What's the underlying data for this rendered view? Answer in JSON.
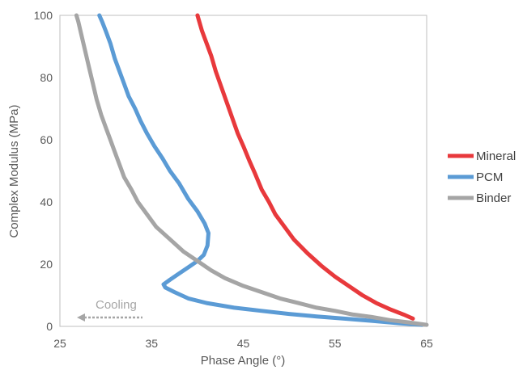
{
  "chart_data": {
    "type": "line",
    "title": "",
    "xlabel": "Phase Angle (°)",
    "ylabel": "Complex Modulus (MPa)",
    "xlim": [
      25,
      65
    ],
    "ylim": [
      0,
      100
    ],
    "xticks": [
      25,
      35,
      45,
      55,
      65
    ],
    "yticks": [
      0,
      20,
      40,
      60,
      80,
      100
    ],
    "grid": false,
    "legend_position": "right",
    "series": [
      {
        "name": "Mineral",
        "color": "#e8393c",
        "points": [
          [
            63.5,
            2.5
          ],
          [
            62.5,
            3.8
          ],
          [
            61,
            5.5
          ],
          [
            59.5,
            7.5
          ],
          [
            58,
            10
          ],
          [
            56.5,
            13
          ],
          [
            55,
            16
          ],
          [
            53.5,
            19.5
          ],
          [
            52,
            23.5
          ],
          [
            50.5,
            28
          ],
          [
            49.5,
            32
          ],
          [
            48.5,
            36
          ],
          [
            47.8,
            40
          ],
          [
            47,
            44
          ],
          [
            46.3,
            49
          ],
          [
            45.7,
            53
          ],
          [
            45,
            58
          ],
          [
            44.4,
            62
          ],
          [
            43.8,
            67
          ],
          [
            43.2,
            72
          ],
          [
            42.6,
            77
          ],
          [
            42,
            82
          ],
          [
            41.5,
            87
          ],
          [
            41,
            91
          ],
          [
            40.5,
            95
          ],
          [
            40,
            100
          ]
        ]
      },
      {
        "name": "PCM",
        "color": "#5b9bd5",
        "points": [
          [
            64.5,
            0.5
          ],
          [
            62,
            1
          ],
          [
            59,
            1.8
          ],
          [
            56,
            2.5
          ],
          [
            53,
            3.2
          ],
          [
            50,
            4
          ],
          [
            47,
            5
          ],
          [
            44,
            6
          ],
          [
            41,
            7.5
          ],
          [
            39,
            9
          ],
          [
            37.5,
            11
          ],
          [
            36.5,
            12.5
          ],
          [
            36.3,
            13.5
          ],
          [
            37,
            15
          ],
          [
            38,
            17
          ],
          [
            39,
            19
          ],
          [
            40,
            21
          ],
          [
            40.7,
            23
          ],
          [
            41.1,
            26
          ],
          [
            41.2,
            30
          ],
          [
            40.8,
            33
          ],
          [
            40,
            37
          ],
          [
            39,
            41
          ],
          [
            38,
            46
          ],
          [
            37,
            50
          ],
          [
            36.2,
            54
          ],
          [
            35.3,
            58
          ],
          [
            34.5,
            62
          ],
          [
            33.8,
            66
          ],
          [
            33.2,
            70
          ],
          [
            32.5,
            74
          ],
          [
            32,
            78
          ],
          [
            31.5,
            82
          ],
          [
            31,
            86
          ],
          [
            30.5,
            91
          ],
          [
            30,
            95
          ],
          [
            29.6,
            98
          ],
          [
            29.3,
            100
          ]
        ]
      },
      {
        "name": "Binder",
        "color": "#a5a5a5",
        "points": [
          [
            65,
            0.5
          ],
          [
            63,
            1.3
          ],
          [
            61,
            2
          ],
          [
            59,
            3
          ],
          [
            57,
            3.8
          ],
          [
            55,
            5
          ],
          [
            53,
            6
          ],
          [
            51,
            7.5
          ],
          [
            49,
            9
          ],
          [
            47,
            11
          ],
          [
            45,
            13
          ],
          [
            43,
            15.5
          ],
          [
            41.5,
            18
          ],
          [
            40,
            21
          ],
          [
            38.5,
            24
          ],
          [
            37,
            28
          ],
          [
            35.5,
            32
          ],
          [
            34.5,
            36
          ],
          [
            33.5,
            40
          ],
          [
            32.8,
            44
          ],
          [
            32,
            48
          ],
          [
            31.5,
            52
          ],
          [
            31,
            56
          ],
          [
            30.5,
            60
          ],
          [
            30,
            64
          ],
          [
            29.5,
            68
          ],
          [
            29,
            73
          ],
          [
            28.6,
            78
          ],
          [
            28.2,
            83
          ],
          [
            27.8,
            88
          ],
          [
            27.4,
            93
          ],
          [
            27,
            98
          ],
          [
            26.8,
            100
          ]
        ]
      }
    ],
    "annotation": {
      "text": "Cooling",
      "arrow": "left",
      "color": "#a6a6a6"
    }
  }
}
